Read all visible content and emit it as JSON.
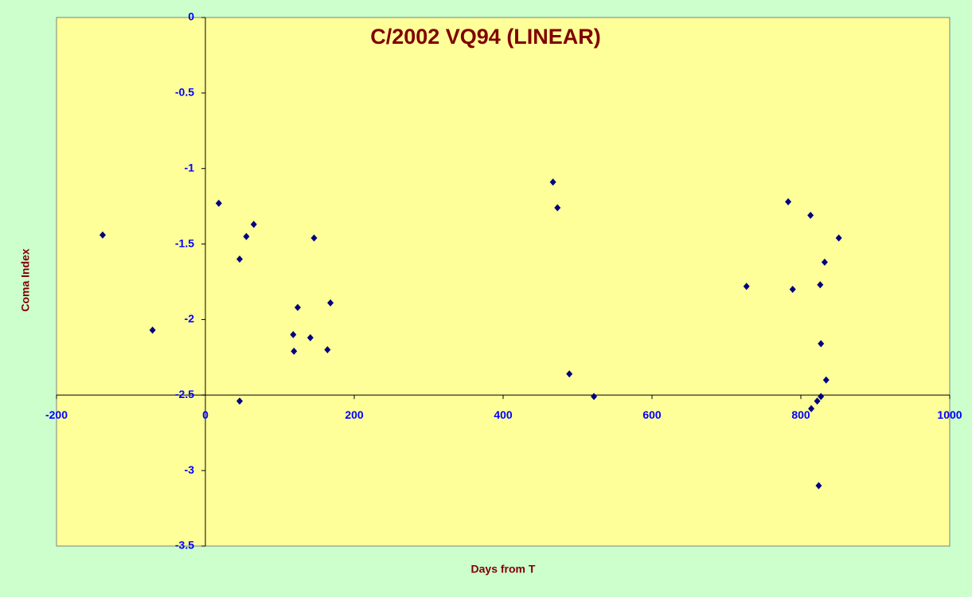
{
  "chart_data": {
    "type": "scatter",
    "title": "C/2002 VQ94 (LINEAR)",
    "x_label": "Days from T",
    "y_label": "Coma Index",
    "x": [
      -138,
      -71,
      18,
      46,
      55,
      65,
      46,
      118,
      119,
      124,
      141,
      146,
      164,
      168,
      467,
      473,
      489,
      522,
      727,
      783,
      789,
      813,
      814,
      824,
      826,
      827,
      822,
      827,
      832,
      834,
      851
    ],
    "values": [
      -1.44,
      -2.07,
      -1.23,
      -1.6,
      -1.45,
      -1.37,
      -2.54,
      -2.1,
      -2.21,
      -1.92,
      -2.12,
      -1.46,
      -2.2,
      -1.89,
      -1.09,
      -1.26,
      -2.36,
      -2.51,
      -1.78,
      -1.22,
      -1.8,
      -1.31,
      -2.59,
      -3.1,
      -1.77,
      -2.16,
      -2.54,
      -2.51,
      -1.62,
      -2.4,
      -1.46
    ],
    "color": "#000080",
    "xlim": [
      -200,
      1000
    ],
    "xticks": [
      -200,
      0,
      200,
      400,
      600,
      800,
      1000
    ],
    "ylim": [
      -3.5,
      0
    ],
    "yticks": [
      0,
      -0.5,
      -1,
      -1.5,
      -2,
      -2.5,
      -3,
      -3.5
    ],
    "x_axis_crosses_at": -2.5,
    "y_axis_crosses_at": 0,
    "grid": false
  }
}
